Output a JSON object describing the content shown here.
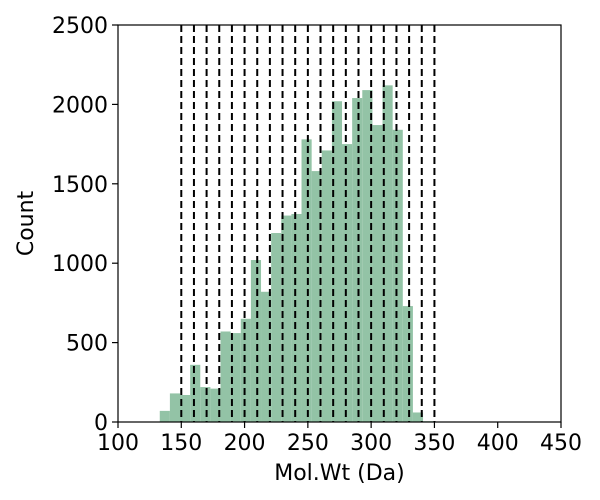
{
  "chart_data": {
    "type": "bar",
    "xlabel": "Mol.Wt (Da)",
    "ylabel": "Count",
    "xlim": [
      100,
      450
    ],
    "ylim": [
      0,
      2500
    ],
    "xticks": [
      100,
      150,
      200,
      250,
      300,
      350,
      400,
      450
    ],
    "yticks": [
      0,
      500,
      1000,
      1500,
      2000,
      2500
    ],
    "bin_width": 8,
    "bar_color": "#93c3a6",
    "line_color": "#000000",
    "bins": [
      {
        "x": 137,
        "value": 70
      },
      {
        "x": 145,
        "value": 180
      },
      {
        "x": 153,
        "value": 170
      },
      {
        "x": 161,
        "value": 360
      },
      {
        "x": 169,
        "value": 220
      },
      {
        "x": 177,
        "value": 210
      },
      {
        "x": 185,
        "value": 570
      },
      {
        "x": 193,
        "value": 560
      },
      {
        "x": 201,
        "value": 650
      },
      {
        "x": 209,
        "value": 1020
      },
      {
        "x": 217,
        "value": 820
      },
      {
        "x": 225,
        "value": 1190
      },
      {
        "x": 233,
        "value": 1300
      },
      {
        "x": 241,
        "value": 1310
      },
      {
        "x": 249,
        "value": 1780
      },
      {
        "x": 257,
        "value": 1580
      },
      {
        "x": 265,
        "value": 1710
      },
      {
        "x": 273,
        "value": 2020
      },
      {
        "x": 281,
        "value": 1750
      },
      {
        "x": 289,
        "value": 2040
      },
      {
        "x": 297,
        "value": 2090
      },
      {
        "x": 305,
        "value": 1870
      },
      {
        "x": 313,
        "value": 2120
      },
      {
        "x": 321,
        "value": 1840
      },
      {
        "x": 329,
        "value": 730
      },
      {
        "x": 337,
        "value": 60
      },
      {
        "x": 345,
        "value": 5
      }
    ],
    "vlines": [
      150,
      160,
      170,
      180,
      190,
      200,
      210,
      220,
      230,
      240,
      250,
      260,
      270,
      280,
      290,
      300,
      310,
      320,
      330,
      340,
      350
    ]
  }
}
